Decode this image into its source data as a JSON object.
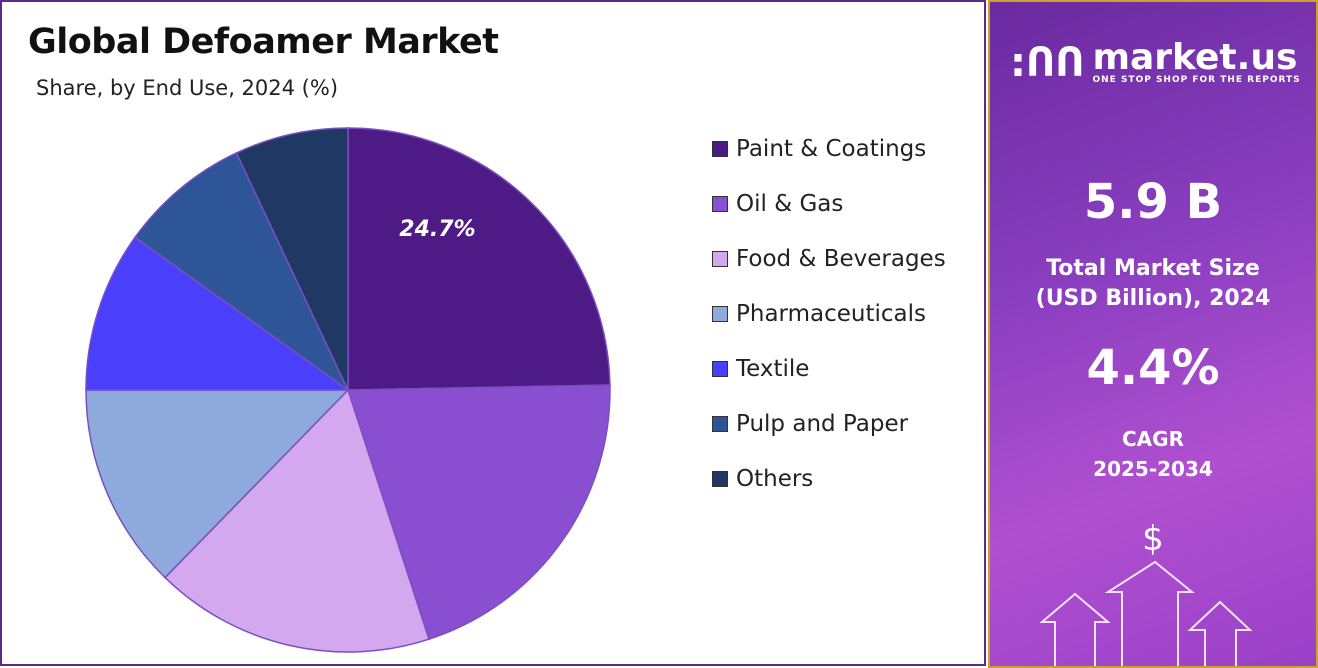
{
  "chart_data": {
    "type": "pie",
    "title": "Global Defoamer Market",
    "subtitle": "Share, by  End Use, 2024 (%)",
    "categories": [
      "Paint & Coatings",
      "Oil & Gas",
      "Food & Beverages",
      "Pharmaceuticals",
      "Textile",
      "Pulp and Paper",
      "Others"
    ],
    "values": [
      24.7,
      20.3,
      17.3,
      12.7,
      9.9,
      8.1,
      7.0
    ],
    "colors": [
      "#4e1a85",
      "#8a4fd0",
      "#d4a8ee",
      "#8eaadc",
      "#4a3ffa",
      "#2e5597",
      "#1f3864"
    ],
    "data_labels": [
      "24.7%",
      "",
      "",
      "",
      "",
      "",
      ""
    ],
    "legend_position": "right"
  },
  "panel": {
    "brand": "market.us",
    "tagline": "ONE STOP SHOP FOR THE REPORTS",
    "market_size": "5.9 B",
    "market_size_label_1": "Total Market Size",
    "market_size_label_2": "(USD Billion), 2024",
    "cagr": "4.4%",
    "cagr_label_1": "CAGR",
    "cagr_label_2": "2025-2034",
    "dollar": "$"
  }
}
